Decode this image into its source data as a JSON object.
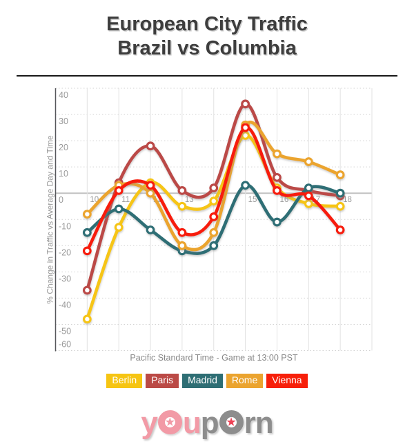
{
  "header": {
    "title_line1": "European City Traffic",
    "title_line2": "Brazil vs Columbia"
  },
  "chart_data": {
    "type": "line",
    "x": [
      10,
      11,
      12,
      13,
      14,
      15,
      16,
      17,
      18
    ],
    "xlim": [
      9,
      19
    ],
    "ylim": [
      -60,
      40
    ],
    "yticks": [
      40,
      30,
      20,
      10,
      0,
      -10,
      -20,
      -30,
      -40,
      -50,
      -60
    ],
    "series": [
      {
        "name": "Berlin",
        "color": "#F6C513",
        "values": [
          -48,
          -13,
          4,
          -5,
          -3,
          22,
          2,
          -4,
          -5
        ]
      },
      {
        "name": "Paris",
        "color": "#BB4A46",
        "values": [
          -37,
          4,
          18,
          1,
          2,
          34,
          6,
          1,
          -1
        ]
      },
      {
        "name": "Madrid",
        "color": "#2E6E74",
        "values": [
          -15,
          -6,
          -14,
          -22,
          -20,
          3,
          -11,
          2,
          0
        ]
      },
      {
        "name": "Rome",
        "color": "#EBA42F",
        "values": [
          -8,
          3,
          0,
          -20,
          -15,
          26,
          15,
          12,
          7
        ]
      },
      {
        "name": "Vienna",
        "color": "#F71F0A",
        "values": [
          -22,
          1,
          3,
          -15,
          -9,
          25,
          1,
          -1,
          -14
        ]
      }
    ],
    "ylabel": "% Change in Traffic vs Average Day and Time",
    "caption": "Pacific Standard Time - Game at 13:00 PST",
    "grid": true,
    "smooth": true,
    "marker": "open-circle",
    "legend_position": "bottom"
  },
  "footer": {
    "logo_left_text": "you",
    "logo_right_text": "porn",
    "logo_left_color": "#F29AA6",
    "logo_right_color": "#8D8D8D",
    "logo_left_star_color": "#F29AA6",
    "logo_right_star_color": "#EE4356"
  }
}
